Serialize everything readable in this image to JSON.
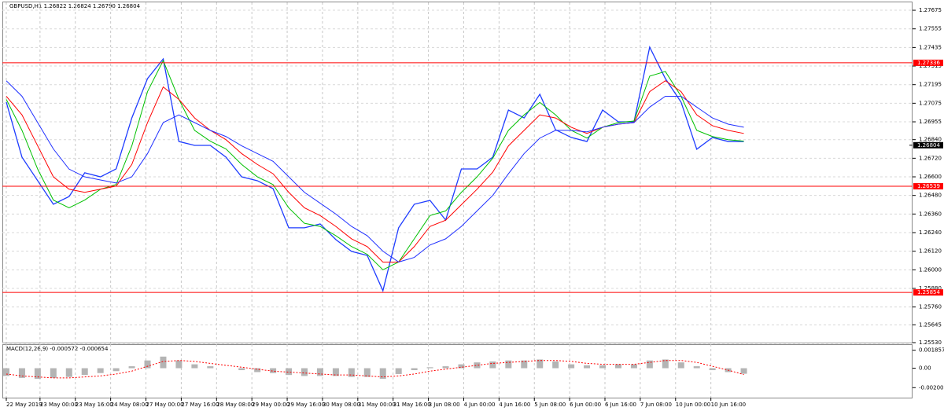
{
  "chart_data": [
    {
      "type": "line",
      "title": "GBPUSD,H1  1.26822 1.26824 1.26790 1.26804",
      "x": [
        0,
        1,
        2,
        3,
        4,
        5,
        6,
        7,
        8,
        9,
        10,
        11,
        12,
        13,
        14,
        15,
        16,
        17,
        18,
        19,
        20,
        21,
        22,
        23,
        24,
        25,
        26,
        27,
        28,
        29,
        30,
        31,
        32,
        33,
        34,
        35,
        36,
        37,
        38,
        39,
        40,
        41,
        42,
        43,
        44,
        45,
        46,
        47
      ],
      "xlim": [
        -0.25,
        57.75
      ],
      "xticks": [
        {
          "value": 0,
          "label": "22 May 2019"
        },
        {
          "value": 2.15,
          "label": "23 May 00:00"
        },
        {
          "value": 4.4,
          "label": "23 May 16:00"
        },
        {
          "value": 6.65,
          "label": "24 May 08:00"
        },
        {
          "value": 8.9,
          "label": "27 May 00:00"
        },
        {
          "value": 11.15,
          "label": "27 May 16:00"
        },
        {
          "value": 13.4,
          "label": "28 May 08:00"
        },
        {
          "value": 15.65,
          "label": "29 May 00:00"
        },
        {
          "value": 17.9,
          "label": "29 May 16:00"
        },
        {
          "value": 20.15,
          "label": "30 May 08:00"
        },
        {
          "value": 22.4,
          "label": "31 May 00:00"
        },
        {
          "value": 24.65,
          "label": "31 May 16:00"
        },
        {
          "value": 26.9,
          "label": "3 Jun 08:00"
        },
        {
          "value": 29.15,
          "label": "4 Jun 00:00"
        },
        {
          "value": 31.4,
          "label": "4 Jun 16:00"
        },
        {
          "value": 33.65,
          "label": "5 Jun 08:00"
        },
        {
          "value": 35.9,
          "label": "6 Jun 00:00"
        },
        {
          "value": 38.15,
          "label": "6 Jun 16:00"
        },
        {
          "value": 40.4,
          "label": "7 Jun 08:00"
        },
        {
          "value": 42.65,
          "label": "10 Jun 00:00"
        },
        {
          "value": 44.9,
          "label": "10 Jun 16:00"
        }
      ],
      "ylim": [
        1.2553,
        1.27726
      ],
      "yticks": [
        1.27675,
        1.27555,
        1.27435,
        1.27315,
        1.27195,
        1.27075,
        1.26955,
        {
          "value": 1.2684,
          "label": "1.26840"
        },
        {
          "value": 1.2672,
          "label": "1.26720"
        },
        {
          "value": 1.266,
          "label": "1.26600"
        },
        {
          "value": 1.2648,
          "label": "1.26480"
        },
        {
          "value": 1.2636,
          "label": "1.26360"
        },
        {
          "value": 1.2624,
          "label": "1.26240"
        },
        {
          "value": 1.2612,
          "label": "1.26120"
        },
        {
          "value": 1.26,
          "label": "1.26000"
        },
        {
          "value": 1.2588,
          "label": "1.25880"
        },
        {
          "value": 1.2576,
          "label": "1.25760"
        },
        1.25645,
        {
          "value": 1.2553,
          "label": "1.25530"
        }
      ],
      "grid": true,
      "levels": [
        1.27336,
        1.26539,
        1.25854
      ],
      "levels_color": "#ff0000",
      "last": 1.26804,
      "series": [
        {
          "color": "#1e3cff",
          "values": [
            1.27082,
            1.26727,
            1.26575,
            1.26423,
            1.26473,
            1.26626,
            1.266,
            1.26651,
            1.2698,
            1.27234,
            1.27361,
            1.26828,
            1.26803,
            1.26803,
            1.26727,
            1.266,
            1.26575,
            1.26524,
            1.26271,
            1.26271,
            1.26296,
            1.26195,
            1.26119,
            1.26093,
            1.25865,
            1.26271,
            1.26423,
            1.26448,
            1.26321,
            1.26651,
            1.26651,
            1.26727,
            1.27031,
            1.2698,
            1.27133,
            1.26904,
            1.26854,
            1.26828,
            1.27031,
            1.26955,
            1.26955,
            1.27437,
            1.27234,
            1.27082,
            1.26778,
            1.26854,
            1.26828,
            1.26828
          ]
        },
        {
          "color": "#00c000",
          "values": [
            1.271,
            1.269,
            1.2665,
            1.2645,
            1.264,
            1.2645,
            1.2652,
            1.2655,
            1.268,
            1.2715,
            1.2735,
            1.271,
            1.269,
            1.2683,
            1.2678,
            1.2668,
            1.266,
            1.2655,
            1.264,
            1.263,
            1.2628,
            1.2622,
            1.2615,
            1.261,
            1.26,
            1.2605,
            1.262,
            1.2635,
            1.2638,
            1.265,
            1.266,
            1.2672,
            1.269,
            1.27,
            1.2708,
            1.27,
            1.269,
            1.2685,
            1.2692,
            1.2695,
            1.2696,
            1.2725,
            1.2728,
            1.2712,
            1.269,
            1.2686,
            1.2684,
            1.2683
          ]
        },
        {
          "color": "#ff0000",
          "values": [
            1.2712,
            1.27,
            1.268,
            1.266,
            1.2652,
            1.265,
            1.2652,
            1.2654,
            1.2668,
            1.2695,
            1.2718,
            1.271,
            1.2698,
            1.269,
            1.2684,
            1.2675,
            1.2668,
            1.2662,
            1.265,
            1.264,
            1.2635,
            1.2628,
            1.262,
            1.2615,
            1.2605,
            1.2605,
            1.2615,
            1.2628,
            1.2632,
            1.2642,
            1.2652,
            1.2663,
            1.268,
            1.269,
            1.27,
            1.2698,
            1.2692,
            1.2688,
            1.2692,
            1.2694,
            1.2695,
            1.2715,
            1.2722,
            1.2715,
            1.27,
            1.2693,
            1.269,
            1.2688
          ]
        },
        {
          "color": "#2030ff",
          "values": [
            1.2722,
            1.2712,
            1.2695,
            1.2678,
            1.2665,
            1.266,
            1.2658,
            1.2656,
            1.266,
            1.2675,
            1.2695,
            1.27,
            1.2695,
            1.269,
            1.2686,
            1.268,
            1.2675,
            1.267,
            1.266,
            1.265,
            1.2643,
            1.2636,
            1.2628,
            1.2622,
            1.2612,
            1.2605,
            1.2608,
            1.2616,
            1.262,
            1.2628,
            1.2638,
            1.2648,
            1.2662,
            1.2675,
            1.2685,
            1.269,
            1.269,
            1.2689,
            1.2692,
            1.2694,
            1.2695,
            1.2705,
            1.2712,
            1.2712,
            1.2705,
            1.2698,
            1.2694,
            1.2692
          ]
        }
      ]
    },
    {
      "type": "macd",
      "title": "MACD(12,26,9) -0.000572 -0.000654",
      "ylim": [
        -0.00304,
        0.00248
      ],
      "yticks": [
        0.001857,
        {
          "value": 0,
          "label": "0.00"
        },
        -0.002007
      ],
      "series": [
        {
          "color": "#b4b4b4",
          "values": [
            -0.0008,
            -0.001,
            -0.0011,
            -0.001,
            -0.0009,
            -0.0007,
            -0.0005,
            -0.0003,
            0.0002,
            0.0008,
            0.0012,
            0.0008,
            0.0004,
            0.0002,
            0,
            -0.0002,
            -0.0004,
            -0.0005,
            -0.0007,
            -0.0008,
            -0.0008,
            -0.0008,
            -0.0009,
            -0.0009,
            -0.0011,
            -0.0006,
            -0.0002,
            0.0001,
            0.0002,
            0.0004,
            0.0006,
            0.0007,
            0.0008,
            0.0008,
            0.0009,
            0.0007,
            0.0004,
            0.0003,
            0.0003,
            0.0004,
            0.0004,
            0.0008,
            0.0009,
            0.0006,
            0.0002,
            -0.0002,
            -0.0004,
            -0.000572
          ]
        },
        {
          "color": "#ff0000",
          "values": [
            -0.0006,
            -0.0008,
            -0.0009,
            -0.001,
            -0.001,
            -0.0009,
            -0.0008,
            -0.0006,
            -0.0003,
            0.0002,
            0.0007,
            0.0008,
            0.0007,
            0.0005,
            0.0003,
            0.0001,
            -0.0001,
            -0.0003,
            -0.0004,
            -0.0005,
            -0.0006,
            -0.0007,
            -0.0007,
            -0.0008,
            -0.0009,
            -0.0008,
            -0.0006,
            -0.0003,
            -0.0001,
            0.0001,
            0.0003,
            0.0005,
            0.0006,
            0.0007,
            0.0008,
            0.0008,
            0.0007,
            0.0005,
            0.0004,
            0.0004,
            0.0004,
            0.0006,
            0.0008,
            0.0008,
            0.0006,
            0.0002,
            -0.0002,
            -0.000654
          ]
        }
      ]
    }
  ]
}
